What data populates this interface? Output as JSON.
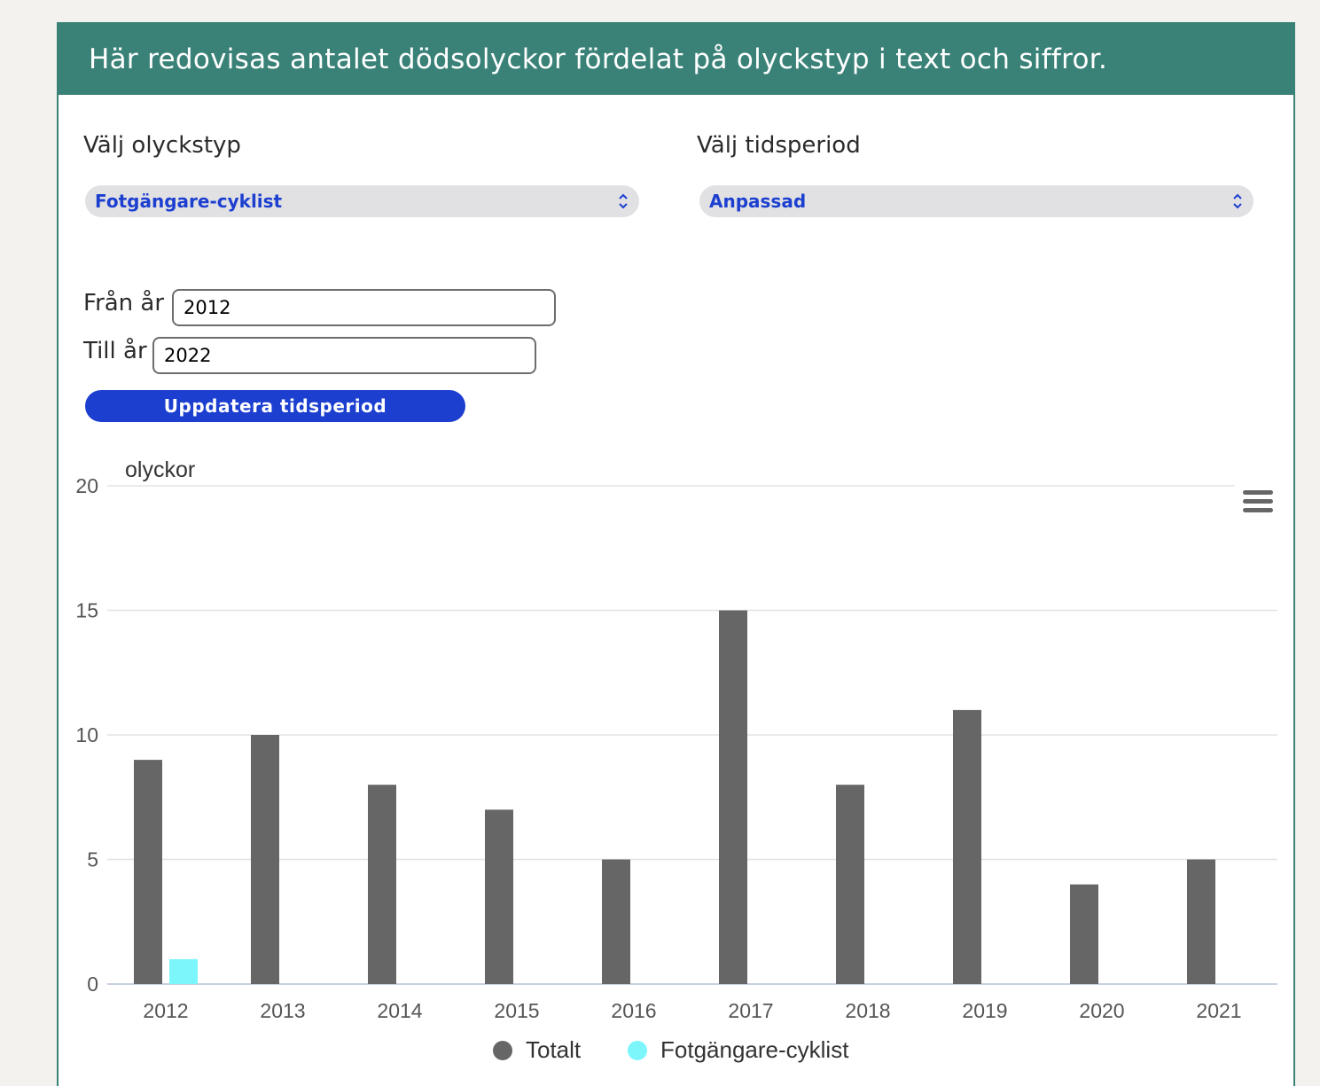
{
  "header": {
    "title": "Här redovisas antalet dödsolyckor fördelat på olyckstyp i text och siffror."
  },
  "filters": {
    "type_label": "Välj olyckstyp",
    "type_value": "Fotgängare-cyklist",
    "period_label": "Välj tidsperiod",
    "period_value": "Anpassad"
  },
  "range": {
    "from_label": "Från år",
    "from_value": "2012",
    "to_label": "Till år",
    "to_value": "2022",
    "update_label": "Uppdatera tidsperiod"
  },
  "menu_icon": "hamburger-menu-icon",
  "chart_data": {
    "type": "bar",
    "ylabel": "olyckor",
    "xlabel": "",
    "categories": [
      "2012",
      "2013",
      "2014",
      "2015",
      "2016",
      "2017",
      "2018",
      "2019",
      "2020",
      "2021"
    ],
    "series": [
      {
        "name": "Totalt",
        "color": "#666666",
        "values": [
          9,
          10,
          8,
          7,
          5,
          15,
          8,
          11,
          4,
          5
        ]
      },
      {
        "name": "Fotgängare-cyklist",
        "color": "#7df6fb",
        "values": [
          1,
          0,
          0,
          0,
          0,
          0,
          0,
          0,
          0,
          0
        ]
      }
    ],
    "ylim": [
      0,
      20
    ],
    "yticks": [
      "0",
      "5",
      "10",
      "15",
      "20"
    ],
    "grid": true,
    "legend": "bottom-center"
  }
}
